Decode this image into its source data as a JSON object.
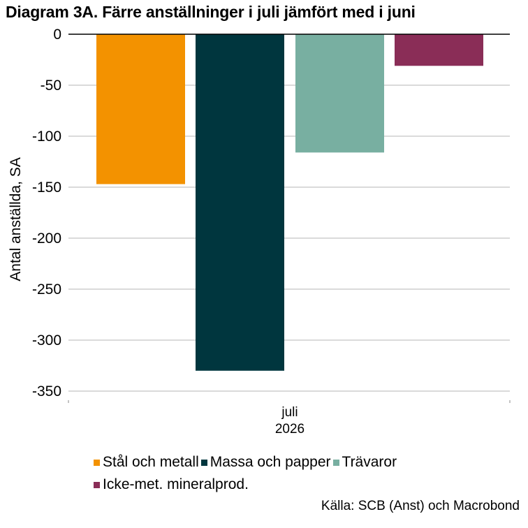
{
  "title": "Diagram 3A. Färre anställninger i juli jämfört med i juni",
  "source": "Källa: SCB (Anst) och Macrobond",
  "chart_data": {
    "type": "bar",
    "categories": [
      "juli 2026"
    ],
    "category_label_lines": [
      "juli",
      "2026"
    ],
    "ylabel": "Antal anställda, SA",
    "xlabel": "",
    "ylim": [
      -350,
      0
    ],
    "yticks": [
      0,
      -50,
      -100,
      -150,
      -200,
      -250,
      -300,
      -350
    ],
    "grid": true,
    "legend_position": "bottom",
    "series": [
      {
        "name": "Stål och metall",
        "color": "#F39200",
        "values": [
          -147
        ]
      },
      {
        "name": "Massa och papper",
        "color": "#00363E",
        "values": [
          -330
        ]
      },
      {
        "name": "Trävaror",
        "color": "#78AFA1",
        "values": [
          -116
        ]
      },
      {
        "name": "Icke-met. mineralprod.",
        "color": "#8A2D57",
        "values": [
          -31
        ]
      }
    ]
  }
}
